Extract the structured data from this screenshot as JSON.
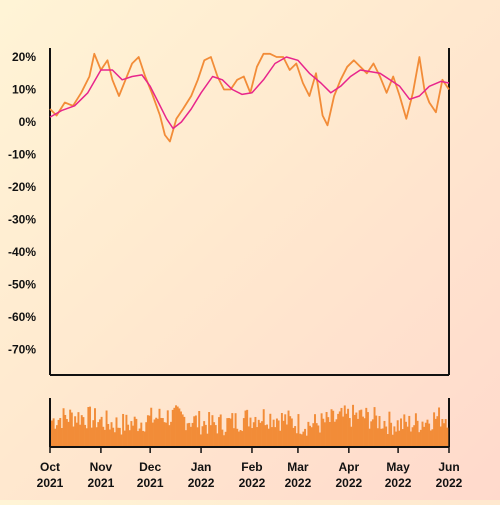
{
  "chart_data": {
    "type": "line",
    "y_axis": {
      "ticks": [
        20,
        10,
        0,
        -10,
        -20,
        -30,
        -40,
        -50,
        -60,
        -70
      ],
      "tick_labels": [
        "20%",
        "10%",
        "0%",
        "-10%",
        "-20%",
        "-30%",
        "-40%",
        "-50%",
        "-60%",
        "-70%"
      ],
      "ylim": [
        -78,
        23
      ]
    },
    "x_axis": {
      "ticks": [
        "2021-10-01",
        "2021-11-01",
        "2021-12-01",
        "2022-01-01",
        "2022-02-01",
        "2022-03-01",
        "2022-04-01",
        "2022-05-01",
        "2022-06-01"
      ],
      "tick_labels": [
        {
          "month": "Oct",
          "year": "2021"
        },
        {
          "month": "Nov",
          "year": "2021"
        },
        {
          "month": "Dec",
          "year": "2021"
        },
        {
          "month": "Jan",
          "year": "2022"
        },
        {
          "month": "Feb",
          "year": "2022"
        },
        {
          "month": "Mar",
          "year": "2022"
        },
        {
          "month": "Apr",
          "year": "2022"
        },
        {
          "month": "May",
          "year": "2022"
        },
        {
          "month": "Jun",
          "year": "2022"
        }
      ],
      "xlim": [
        "2021-10-01",
        "2022-06-01"
      ]
    },
    "series": [
      {
        "role": "raw",
        "color": "#f28c38",
        "points": [
          [
            "2021-10-01",
            4
          ],
          [
            "2021-10-05",
            2
          ],
          [
            "2021-10-10",
            6
          ],
          [
            "2021-10-15",
            5
          ],
          [
            "2021-10-20",
            9
          ],
          [
            "2021-10-25",
            14
          ],
          [
            "2021-10-28",
            21
          ],
          [
            "2021-11-01",
            16
          ],
          [
            "2021-11-05",
            19
          ],
          [
            "2021-11-08",
            13
          ],
          [
            "2021-11-12",
            8
          ],
          [
            "2021-11-16",
            13
          ],
          [
            "2021-11-20",
            18
          ],
          [
            "2021-11-24",
            20
          ],
          [
            "2021-11-28",
            14
          ],
          [
            "2021-12-02",
            9
          ],
          [
            "2021-12-07",
            2
          ],
          [
            "2021-12-10",
            -4
          ],
          [
            "2021-12-13",
            -6
          ],
          [
            "2021-12-17",
            1
          ],
          [
            "2021-12-21",
            4
          ],
          [
            "2021-12-26",
            8
          ],
          [
            "2021-12-30",
            13
          ],
          [
            "2022-01-03",
            19
          ],
          [
            "2022-01-07",
            20
          ],
          [
            "2022-01-11",
            14
          ],
          [
            "2022-01-15",
            10
          ],
          [
            "2022-01-19",
            10
          ],
          [
            "2022-01-23",
            13
          ],
          [
            "2022-01-27",
            14
          ],
          [
            "2022-01-31",
            9
          ],
          [
            "2022-02-04",
            17
          ],
          [
            "2022-02-08",
            21
          ],
          [
            "2022-02-12",
            21
          ],
          [
            "2022-02-16",
            20
          ],
          [
            "2022-02-20",
            20
          ],
          [
            "2022-02-24",
            16
          ],
          [
            "2022-02-28",
            18
          ],
          [
            "2022-03-04",
            12
          ],
          [
            "2022-03-08",
            8
          ],
          [
            "2022-03-12",
            15
          ],
          [
            "2022-03-16",
            2
          ],
          [
            "2022-03-19",
            -1
          ],
          [
            "2022-03-23",
            8
          ],
          [
            "2022-03-27",
            13
          ],
          [
            "2022-03-31",
            17
          ],
          [
            "2022-04-04",
            19
          ],
          [
            "2022-04-08",
            17
          ],
          [
            "2022-04-12",
            15
          ],
          [
            "2022-04-16",
            18
          ],
          [
            "2022-04-20",
            14
          ],
          [
            "2022-04-24",
            9
          ],
          [
            "2022-04-28",
            14
          ],
          [
            "2022-05-02",
            8
          ],
          [
            "2022-05-06",
            1
          ],
          [
            "2022-05-10",
            9
          ],
          [
            "2022-05-14",
            20
          ],
          [
            "2022-05-17",
            10
          ],
          [
            "2022-05-20",
            6
          ],
          [
            "2022-05-24",
            3
          ],
          [
            "2022-05-28",
            13
          ],
          [
            "2022-06-01",
            10
          ]
        ]
      },
      {
        "role": "smoothed",
        "color": "#e8258c",
        "points": [
          [
            "2021-10-01",
            1.5
          ],
          [
            "2021-10-08",
            3.5
          ],
          [
            "2021-10-16",
            5
          ],
          [
            "2021-10-24",
            9
          ],
          [
            "2021-11-01",
            16
          ],
          [
            "2021-11-08",
            16
          ],
          [
            "2021-11-14",
            13
          ],
          [
            "2021-11-20",
            14
          ],
          [
            "2021-11-26",
            14.5
          ],
          [
            "2021-12-01",
            11
          ],
          [
            "2021-12-06",
            6
          ],
          [
            "2021-12-11",
            1
          ],
          [
            "2021-12-15",
            -2
          ],
          [
            "2021-12-20",
            0
          ],
          [
            "2021-12-26",
            4
          ],
          [
            "2022-01-01",
            9
          ],
          [
            "2022-01-08",
            14
          ],
          [
            "2022-01-14",
            13
          ],
          [
            "2022-01-20",
            10
          ],
          [
            "2022-01-26",
            8.5
          ],
          [
            "2022-02-01",
            9
          ],
          [
            "2022-02-08",
            13
          ],
          [
            "2022-02-15",
            18
          ],
          [
            "2022-02-22",
            20
          ],
          [
            "2022-03-01",
            19
          ],
          [
            "2022-03-08",
            15
          ],
          [
            "2022-03-15",
            12
          ],
          [
            "2022-03-21",
            9
          ],
          [
            "2022-03-27",
            11
          ],
          [
            "2022-04-02",
            14
          ],
          [
            "2022-04-08",
            16
          ],
          [
            "2022-04-14",
            15.5
          ],
          [
            "2022-04-20",
            15
          ],
          [
            "2022-04-26",
            13
          ],
          [
            "2022-05-02",
            11
          ],
          [
            "2022-05-08",
            7
          ],
          [
            "2022-05-14",
            8
          ],
          [
            "2022-05-20",
            11
          ],
          [
            "2022-05-27",
            12.5
          ],
          [
            "2022-06-01",
            12
          ]
        ]
      }
    ],
    "volume": {
      "color": "#f28c38",
      "count": 240,
      "min": 0.25,
      "max": 0.8
    }
  }
}
